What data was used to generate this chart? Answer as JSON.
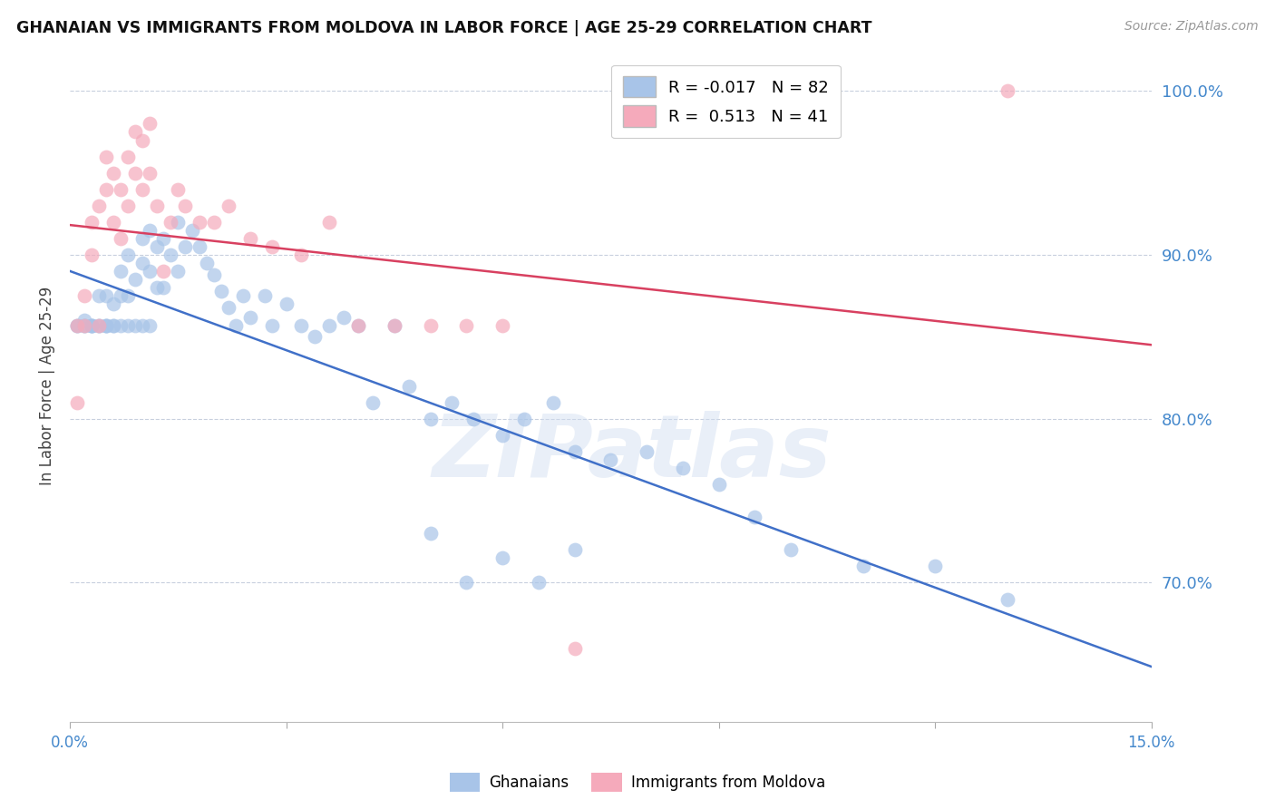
{
  "title": "GHANAIAN VS IMMIGRANTS FROM MOLDOVA IN LABOR FORCE | AGE 25-29 CORRELATION CHART",
  "source": "Source: ZipAtlas.com",
  "ylabel": "In Labor Force | Age 25-29",
  "x_min": 0.0,
  "x_max": 0.15,
  "y_min": 0.615,
  "y_max": 1.025,
  "y_ticks": [
    1.0,
    0.9,
    0.8,
    0.7
  ],
  "y_tick_labels": [
    "100.0%",
    "90.0%",
    "80.0%",
    "70.0%"
  ],
  "blue_color": "#a8c4e8",
  "pink_color": "#f5aabb",
  "blue_line_color": "#4070c8",
  "pink_line_color": "#d84060",
  "right_axis_color": "#4488cc",
  "legend_R_blue": "-0.017",
  "legend_N_blue": "82",
  "legend_R_pink": "0.513",
  "legend_N_pink": "41",
  "watermark": "ZIPatlas",
  "blue_scatter_x": [
    0.001,
    0.001,
    0.002,
    0.002,
    0.002,
    0.003,
    0.003,
    0.003,
    0.003,
    0.004,
    0.004,
    0.004,
    0.005,
    0.005,
    0.005,
    0.005,
    0.006,
    0.006,
    0.006,
    0.007,
    0.007,
    0.007,
    0.008,
    0.008,
    0.008,
    0.009,
    0.009,
    0.01,
    0.01,
    0.01,
    0.011,
    0.011,
    0.011,
    0.012,
    0.012,
    0.013,
    0.013,
    0.014,
    0.015,
    0.015,
    0.016,
    0.017,
    0.018,
    0.019,
    0.02,
    0.021,
    0.022,
    0.023,
    0.024,
    0.025,
    0.027,
    0.028,
    0.03,
    0.032,
    0.034,
    0.036,
    0.038,
    0.04,
    0.042,
    0.045,
    0.047,
    0.05,
    0.053,
    0.056,
    0.06,
    0.063,
    0.067,
    0.07,
    0.075,
    0.08,
    0.085,
    0.09,
    0.095,
    0.1,
    0.11,
    0.12,
    0.13,
    0.05,
    0.06,
    0.065,
    0.055,
    0.07
  ],
  "blue_scatter_y": [
    0.857,
    0.857,
    0.86,
    0.857,
    0.857,
    0.857,
    0.857,
    0.857,
    0.857,
    0.875,
    0.857,
    0.857,
    0.875,
    0.857,
    0.857,
    0.857,
    0.87,
    0.857,
    0.857,
    0.89,
    0.875,
    0.857,
    0.9,
    0.875,
    0.857,
    0.885,
    0.857,
    0.91,
    0.895,
    0.857,
    0.915,
    0.89,
    0.857,
    0.905,
    0.88,
    0.91,
    0.88,
    0.9,
    0.92,
    0.89,
    0.905,
    0.915,
    0.905,
    0.895,
    0.888,
    0.878,
    0.868,
    0.857,
    0.875,
    0.862,
    0.875,
    0.857,
    0.87,
    0.857,
    0.85,
    0.857,
    0.862,
    0.857,
    0.81,
    0.857,
    0.82,
    0.8,
    0.81,
    0.8,
    0.79,
    0.8,
    0.81,
    0.78,
    0.775,
    0.78,
    0.77,
    0.76,
    0.74,
    0.72,
    0.71,
    0.71,
    0.69,
    0.73,
    0.715,
    0.7,
    0.7,
    0.72
  ],
  "pink_scatter_x": [
    0.001,
    0.001,
    0.002,
    0.002,
    0.003,
    0.003,
    0.004,
    0.004,
    0.005,
    0.005,
    0.006,
    0.006,
    0.007,
    0.007,
    0.008,
    0.008,
    0.009,
    0.009,
    0.01,
    0.01,
    0.011,
    0.011,
    0.012,
    0.013,
    0.014,
    0.015,
    0.016,
    0.018,
    0.02,
    0.022,
    0.025,
    0.028,
    0.032,
    0.036,
    0.04,
    0.045,
    0.05,
    0.055,
    0.06,
    0.07,
    0.13
  ],
  "pink_scatter_y": [
    0.857,
    0.81,
    0.875,
    0.857,
    0.92,
    0.9,
    0.93,
    0.857,
    0.96,
    0.94,
    0.95,
    0.92,
    0.94,
    0.91,
    0.96,
    0.93,
    0.975,
    0.95,
    0.97,
    0.94,
    0.98,
    0.95,
    0.93,
    0.89,
    0.92,
    0.94,
    0.93,
    0.92,
    0.92,
    0.93,
    0.91,
    0.905,
    0.9,
    0.92,
    0.857,
    0.857,
    0.857,
    0.857,
    0.857,
    0.66,
    1.0
  ]
}
